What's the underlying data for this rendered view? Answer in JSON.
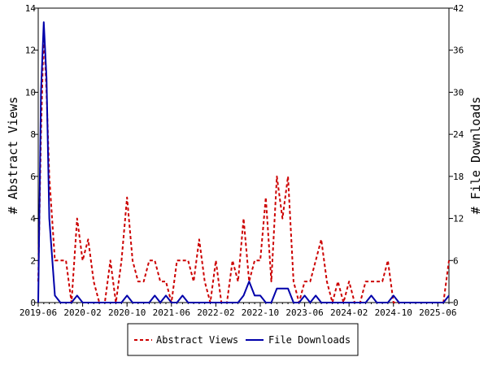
{
  "chart_data": {
    "type": "line",
    "title": "",
    "ylabel_left": "# Abstract Views",
    "ylabel_right": "# File Downloads",
    "xlabel": "",
    "x_tick_labels": [
      "2019-06",
      "2020-02",
      "2020-10",
      "2021-06",
      "2022-02",
      "2022-10",
      "2023-06",
      "2024-02",
      "2024-10",
      "2025-06"
    ],
    "x_tick_positions": [
      0,
      8,
      16,
      24,
      32,
      40,
      48,
      56,
      64,
      72
    ],
    "x_range": [
      0,
      74
    ],
    "y_left_range": [
      0,
      14
    ],
    "y_left_ticks": [
      0,
      2,
      4,
      6,
      8,
      10,
      12,
      14
    ],
    "y_right_range": [
      0,
      42
    ],
    "y_right_ticks": [
      0,
      6,
      12,
      18,
      24,
      30,
      36,
      42
    ],
    "grid": false,
    "legend_placement": "bottom",
    "series": [
      {
        "name": "Abstract Views",
        "axis": "left",
        "color": "#cc0000",
        "style": "dashed",
        "x": [
          0,
          0.5,
          1,
          1.5,
          2,
          3,
          4,
          5,
          6,
          7,
          8,
          9,
          10,
          11,
          12,
          13,
          14,
          15,
          16,
          17,
          18,
          19,
          20,
          21,
          22,
          23,
          24,
          25,
          26,
          27,
          28,
          29,
          30,
          31,
          32,
          33,
          34,
          35,
          36,
          37,
          38,
          39,
          40,
          41,
          42,
          43,
          44,
          45,
          46,
          47,
          48,
          49,
          50,
          51,
          52,
          53,
          54,
          55,
          56,
          57,
          58,
          59,
          60,
          61,
          62,
          63,
          64,
          65,
          66,
          67,
          68,
          69,
          70,
          71,
          72,
          73,
          74
        ],
        "y": [
          1,
          8,
          13,
          10,
          6,
          2,
          2,
          2,
          0,
          4,
          2,
          3,
          1,
          0,
          0,
          2,
          0,
          2,
          5,
          2,
          1,
          1,
          2,
          2,
          1,
          1,
          0,
          2,
          2,
          2,
          1,
          3,
          1,
          0,
          2,
          0,
          0,
          2,
          1,
          4,
          1,
          2,
          2,
          5,
          1,
          6,
          4,
          6,
          1,
          0,
          1,
          1,
          2,
          3,
          1,
          0,
          1,
          0,
          1,
          0,
          0,
          1,
          1,
          1,
          1,
          2,
          0,
          0,
          0,
          0,
          0,
          0,
          0,
          0,
          0,
          0,
          2
        ]
      },
      {
        "name": "File Downloads",
        "axis": "right",
        "color": "#0000aa",
        "style": "solid",
        "x": [
          0,
          0.5,
          1,
          1.5,
          2,
          3,
          4,
          5,
          6,
          7,
          8,
          9,
          10,
          11,
          12,
          13,
          14,
          15,
          16,
          17,
          18,
          19,
          20,
          21,
          22,
          23,
          24,
          25,
          26,
          27,
          28,
          29,
          30,
          31,
          32,
          33,
          34,
          35,
          36,
          37,
          38,
          39,
          40,
          41,
          42,
          43,
          44,
          45,
          46,
          47,
          48,
          49,
          50,
          51,
          52,
          53,
          54,
          55,
          56,
          57,
          58,
          59,
          60,
          61,
          62,
          63,
          64,
          65,
          66,
          67,
          68,
          69,
          70,
          71,
          72,
          73,
          74
        ],
        "y": [
          0,
          30,
          40,
          32,
          12,
          1,
          0,
          0,
          0,
          1,
          0,
          0,
          0,
          0,
          0,
          0,
          0,
          0,
          1,
          0,
          0,
          0,
          0,
          1,
          0,
          1,
          0,
          0,
          1,
          0,
          0,
          0,
          0,
          0,
          0,
          0,
          0,
          0,
          0,
          1,
          3,
          1,
          1,
          0,
          0,
          2,
          2,
          2,
          0,
          0,
          1,
          0,
          1,
          0,
          0,
          0,
          0,
          0,
          0,
          0,
          0,
          0,
          1,
          0,
          0,
          0,
          1,
          0,
          0,
          0,
          0,
          0,
          0,
          0,
          0,
          0,
          1
        ]
      }
    ]
  }
}
